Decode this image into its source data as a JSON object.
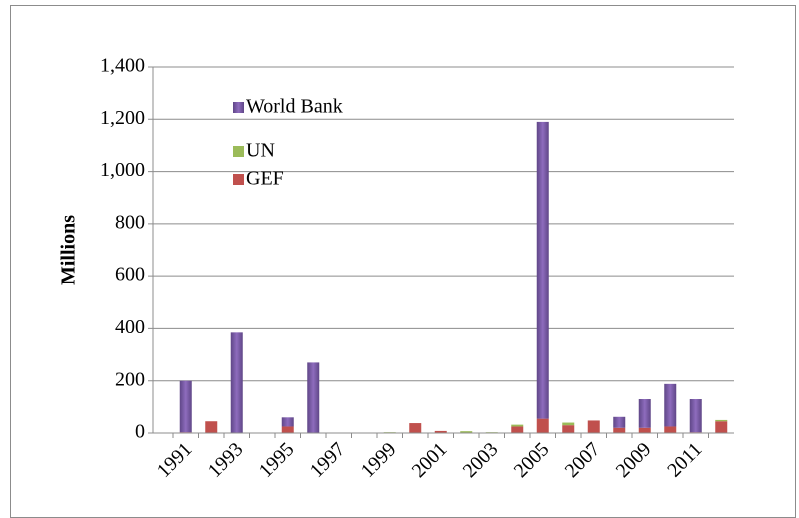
{
  "chart_data": {
    "type": "bar",
    "stacked": true,
    "y_label": "Millions",
    "categories": [
      "1991",
      null,
      "1993",
      null,
      "1995",
      null,
      "1997",
      null,
      "1999",
      null,
      "2001",
      null,
      "2003",
      null,
      "2005",
      null,
      "2007",
      null,
      "2009",
      null,
      "2011",
      null
    ],
    "series": [
      {
        "name": "GEF",
        "color": "#c0504d",
        "values": [
          3,
          45,
          0,
          0,
          25,
          0,
          0,
          0,
          0,
          38,
          8,
          0,
          0,
          25,
          55,
          30,
          48,
          20,
          20,
          25,
          3,
          45
        ]
      },
      {
        "name": "UN",
        "color": "#9bbb59",
        "values": [
          0,
          0,
          0,
          0,
          0,
          0,
          0,
          0,
          3,
          0,
          0,
          7,
          3,
          7,
          0,
          10,
          0,
          0,
          0,
          0,
          0,
          5
        ]
      },
      {
        "name": "World Bank",
        "color": "#7d5fa8",
        "values": [
          197,
          0,
          385,
          0,
          35,
          270,
          0,
          0,
          0,
          0,
          0,
          0,
          0,
          0,
          1135,
          0,
          0,
          42,
          110,
          163,
          127,
          0
        ]
      }
    ],
    "ylim": [
      0,
      1400
    ],
    "yticks": [
      0,
      200,
      400,
      600,
      800,
      {
        "value": 1000,
        "label": "1,000"
      },
      {
        "value": 1200,
        "label": "1,200"
      },
      {
        "value": 1400,
        "label": "1,400"
      }
    ],
    "grid": true,
    "legend": "upper left"
  }
}
